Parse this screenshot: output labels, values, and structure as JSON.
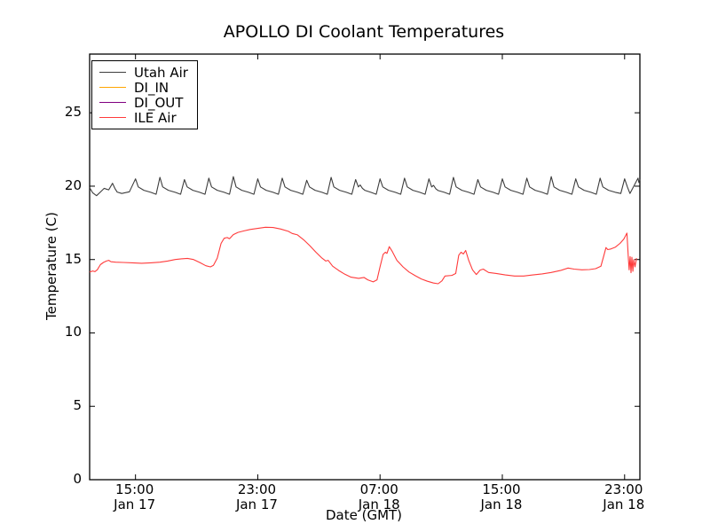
{
  "title": "APOLLO DI Coolant Temperatures",
  "chart_data": {
    "type": "line",
    "title": "APOLLO DI Coolant Temperatures",
    "xlabel": "Date (GMT)",
    "ylabel": "Temperature (C)",
    "ylim": [
      0,
      29
    ],
    "xlim_hours": [
      0,
      36
    ],
    "grid": false,
    "legend_position": "upper left",
    "frame_color": "#000000",
    "yticks": [
      0,
      5,
      10,
      15,
      20,
      25
    ],
    "xticks": [
      {
        "hour": 3,
        "time": "15:00",
        "date": "Jan 17"
      },
      {
        "hour": 11,
        "time": "23:00",
        "date": "Jan 17"
      },
      {
        "hour": 19,
        "time": "07:00",
        "date": "Jan 18"
      },
      {
        "hour": 27,
        "time": "15:00",
        "date": "Jan 18"
      },
      {
        "hour": 35,
        "time": "23:00",
        "date": "Jan 18"
      }
    ],
    "series": [
      {
        "name": "Utah Air",
        "color": "#3d3d3d",
        "points": [
          [
            0,
            19.9
          ],
          [
            0.2,
            19.55
          ],
          [
            0.45,
            19.35
          ],
          [
            0.7,
            19.6
          ],
          [
            0.95,
            19.85
          ],
          [
            1.1,
            19.8
          ],
          [
            1.25,
            19.75
          ],
          [
            1.5,
            20.2
          ],
          [
            1.65,
            19.85
          ],
          [
            1.8,
            19.6
          ],
          [
            2.1,
            19.5
          ],
          [
            2.6,
            19.62
          ],
          [
            3.0,
            20.5
          ],
          [
            3.18,
            19.95
          ],
          [
            3.55,
            19.72
          ],
          [
            4.0,
            19.58
          ],
          [
            4.35,
            19.45
          ],
          [
            4.6,
            20.6
          ],
          [
            4.78,
            19.95
          ],
          [
            5.15,
            19.72
          ],
          [
            5.6,
            19.58
          ],
          [
            5.95,
            19.45
          ],
          [
            6.2,
            20.45
          ],
          [
            6.38,
            19.95
          ],
          [
            6.75,
            19.72
          ],
          [
            7.2,
            19.58
          ],
          [
            7.55,
            19.45
          ],
          [
            7.8,
            20.55
          ],
          [
            7.98,
            19.95
          ],
          [
            8.35,
            19.72
          ],
          [
            8.8,
            19.58
          ],
          [
            9.15,
            19.45
          ],
          [
            9.4,
            20.65
          ],
          [
            9.58,
            19.95
          ],
          [
            9.95,
            19.72
          ],
          [
            10.4,
            19.58
          ],
          [
            10.75,
            19.45
          ],
          [
            11.0,
            20.5
          ],
          [
            11.18,
            19.95
          ],
          [
            11.55,
            19.72
          ],
          [
            12.0,
            19.58
          ],
          [
            12.35,
            19.45
          ],
          [
            12.6,
            20.55
          ],
          [
            12.78,
            19.95
          ],
          [
            13.15,
            19.72
          ],
          [
            13.6,
            19.58
          ],
          [
            13.95,
            19.45
          ],
          [
            14.2,
            20.4
          ],
          [
            14.38,
            19.95
          ],
          [
            14.75,
            19.72
          ],
          [
            15.2,
            19.58
          ],
          [
            15.55,
            19.45
          ],
          [
            15.8,
            20.6
          ],
          [
            15.98,
            19.95
          ],
          [
            16.35,
            19.72
          ],
          [
            16.8,
            19.58
          ],
          [
            17.15,
            19.45
          ],
          [
            17.4,
            20.45
          ],
          [
            17.58,
            19.95
          ],
          [
            17.7,
            20.08
          ],
          [
            17.85,
            19.85
          ],
          [
            18.0,
            19.72
          ],
          [
            18.4,
            19.58
          ],
          [
            18.75,
            19.45
          ],
          [
            19.0,
            20.5
          ],
          [
            19.18,
            19.95
          ],
          [
            19.55,
            19.72
          ],
          [
            20.0,
            19.58
          ],
          [
            20.35,
            19.45
          ],
          [
            20.6,
            20.55
          ],
          [
            20.78,
            19.95
          ],
          [
            21.15,
            19.72
          ],
          [
            21.6,
            19.58
          ],
          [
            21.95,
            19.45
          ],
          [
            22.2,
            20.5
          ],
          [
            22.38,
            19.95
          ],
          [
            22.5,
            20.05
          ],
          [
            22.65,
            19.82
          ],
          [
            22.8,
            19.7
          ],
          [
            23.2,
            19.58
          ],
          [
            23.55,
            19.45
          ],
          [
            23.8,
            20.6
          ],
          [
            23.98,
            19.95
          ],
          [
            24.35,
            19.72
          ],
          [
            24.8,
            19.58
          ],
          [
            25.15,
            19.45
          ],
          [
            25.4,
            20.45
          ],
          [
            25.58,
            19.95
          ],
          [
            25.95,
            19.72
          ],
          [
            26.4,
            19.58
          ],
          [
            26.75,
            19.45
          ],
          [
            27.0,
            20.5
          ],
          [
            27.18,
            19.95
          ],
          [
            27.55,
            19.72
          ],
          [
            28.0,
            19.58
          ],
          [
            28.35,
            19.45
          ],
          [
            28.6,
            20.55
          ],
          [
            28.78,
            19.95
          ],
          [
            29.15,
            19.72
          ],
          [
            29.6,
            19.58
          ],
          [
            29.95,
            19.45
          ],
          [
            30.2,
            20.65
          ],
          [
            30.38,
            19.95
          ],
          [
            30.75,
            19.72
          ],
          [
            31.2,
            19.58
          ],
          [
            31.55,
            19.45
          ],
          [
            31.8,
            20.5
          ],
          [
            31.98,
            19.95
          ],
          [
            32.35,
            19.72
          ],
          [
            32.8,
            19.58
          ],
          [
            33.15,
            19.45
          ],
          [
            33.4,
            20.55
          ],
          [
            33.58,
            19.95
          ],
          [
            33.95,
            19.72
          ],
          [
            34.4,
            19.58
          ],
          [
            34.75,
            19.5
          ],
          [
            35.0,
            20.5
          ],
          [
            35.18,
            19.95
          ],
          [
            35.35,
            19.5
          ],
          [
            35.88,
            20.55
          ],
          [
            35.93,
            20.25
          ],
          [
            36,
            20.45
          ]
        ]
      },
      {
        "name": "DI_IN",
        "color": "#ffa500",
        "points": []
      },
      {
        "name": "DI_OUT",
        "color": "#800080",
        "points": []
      },
      {
        "name": "ILE Air",
        "color": "#ff3b3b",
        "points": [
          [
            0,
            14.15
          ],
          [
            0.2,
            14.22
          ],
          [
            0.35,
            14.18
          ],
          [
            0.5,
            14.3
          ],
          [
            0.7,
            14.65
          ],
          [
            0.9,
            14.8
          ],
          [
            1.1,
            14.9
          ],
          [
            1.25,
            14.95
          ],
          [
            1.4,
            14.85
          ],
          [
            1.7,
            14.82
          ],
          [
            2.2,
            14.8
          ],
          [
            2.8,
            14.78
          ],
          [
            3.4,
            14.75
          ],
          [
            4,
            14.78
          ],
          [
            4.6,
            14.82
          ],
          [
            5.1,
            14.9
          ],
          [
            5.6,
            15.0
          ],
          [
            6,
            15.05
          ],
          [
            6.4,
            15.08
          ],
          [
            6.8,
            15.0
          ],
          [
            7.2,
            14.8
          ],
          [
            7.6,
            14.58
          ],
          [
            7.9,
            14.5
          ],
          [
            8.1,
            14.6
          ],
          [
            8.35,
            15.1
          ],
          [
            8.6,
            16.1
          ],
          [
            8.8,
            16.45
          ],
          [
            9.0,
            16.5
          ],
          [
            9.15,
            16.42
          ],
          [
            9.4,
            16.7
          ],
          [
            9.7,
            16.85
          ],
          [
            10.1,
            16.95
          ],
          [
            10.5,
            17.05
          ],
          [
            11,
            17.12
          ],
          [
            11.5,
            17.2
          ],
          [
            12,
            17.18
          ],
          [
            12.5,
            17.08
          ],
          [
            13,
            16.92
          ],
          [
            13.25,
            16.78
          ],
          [
            13.6,
            16.68
          ],
          [
            14,
            16.35
          ],
          [
            14.4,
            15.95
          ],
          [
            14.8,
            15.5
          ],
          [
            15.2,
            15.1
          ],
          [
            15.45,
            14.9
          ],
          [
            15.6,
            14.95
          ],
          [
            15.9,
            14.55
          ],
          [
            16.3,
            14.25
          ],
          [
            16.7,
            14.0
          ],
          [
            17.1,
            13.8
          ],
          [
            17.6,
            13.72
          ],
          [
            17.95,
            13.78
          ],
          [
            18.2,
            13.62
          ],
          [
            18.55,
            13.48
          ],
          [
            18.8,
            13.62
          ],
          [
            19.0,
            14.5
          ],
          [
            19.2,
            15.35
          ],
          [
            19.35,
            15.5
          ],
          [
            19.45,
            15.42
          ],
          [
            19.6,
            15.88
          ],
          [
            19.8,
            15.55
          ],
          [
            20.1,
            14.95
          ],
          [
            20.5,
            14.5
          ],
          [
            20.9,
            14.15
          ],
          [
            21.3,
            13.9
          ],
          [
            21.7,
            13.68
          ],
          [
            22.1,
            13.52
          ],
          [
            22.5,
            13.4
          ],
          [
            22.8,
            13.35
          ],
          [
            23.05,
            13.55
          ],
          [
            23.25,
            13.88
          ],
          [
            23.7,
            13.92
          ],
          [
            23.95,
            14.05
          ],
          [
            24.15,
            15.3
          ],
          [
            24.3,
            15.5
          ],
          [
            24.45,
            15.38
          ],
          [
            24.6,
            15.62
          ],
          [
            24.8,
            14.95
          ],
          [
            25.05,
            14.3
          ],
          [
            25.3,
            13.98
          ],
          [
            25.55,
            14.28
          ],
          [
            25.75,
            14.35
          ],
          [
            26.1,
            14.12
          ],
          [
            26.6,
            14.05
          ],
          [
            27.2,
            13.95
          ],
          [
            27.8,
            13.88
          ],
          [
            28.4,
            13.88
          ],
          [
            29,
            13.95
          ],
          [
            29.6,
            14.02
          ],
          [
            30.2,
            14.12
          ],
          [
            30.8,
            14.25
          ],
          [
            31.3,
            14.42
          ],
          [
            31.7,
            14.35
          ],
          [
            32.2,
            14.3
          ],
          [
            32.7,
            14.32
          ],
          [
            33.1,
            14.38
          ],
          [
            33.45,
            14.55
          ],
          [
            33.65,
            15.3
          ],
          [
            33.78,
            15.82
          ],
          [
            33.9,
            15.68
          ],
          [
            34.1,
            15.72
          ],
          [
            34.4,
            15.85
          ],
          [
            34.7,
            16.1
          ],
          [
            34.95,
            16.4
          ],
          [
            35.15,
            16.8
          ],
          [
            35.25,
            15.0
          ],
          [
            35.3,
            14.3
          ],
          [
            35.36,
            15.2
          ],
          [
            35.42,
            14.1
          ],
          [
            35.48,
            15.15
          ],
          [
            35.54,
            14.2
          ],
          [
            35.6,
            15.0
          ],
          [
            35.68,
            14.5
          ],
          [
            35.78,
            15.1
          ]
        ]
      }
    ]
  }
}
